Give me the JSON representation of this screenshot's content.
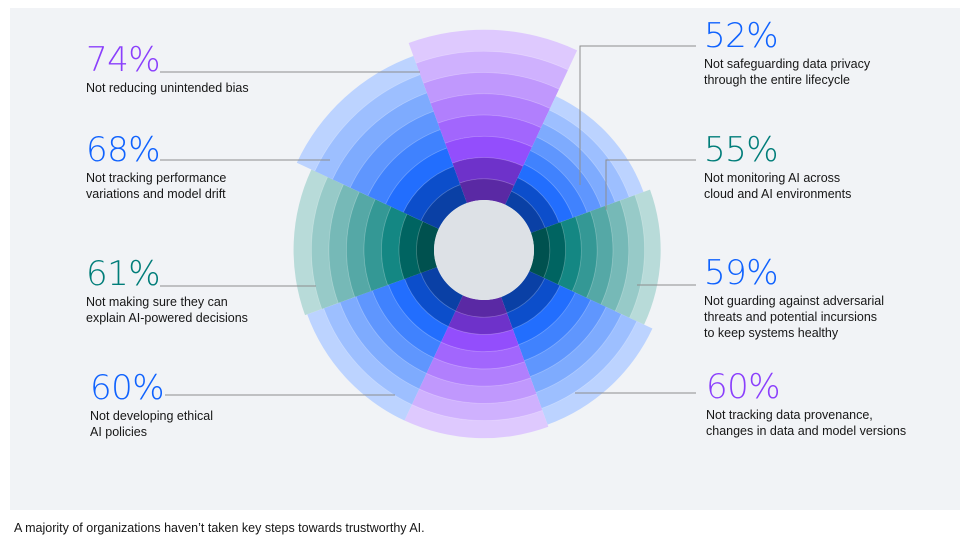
{
  "chart_data": {
    "type": "polar-bar",
    "title": "",
    "caption": "A majority of organizations haven’t taken key steps towards trustworthy AI.",
    "series": [
      {
        "label": "74%",
        "value": 74,
        "description": "Not reducing unintended bias",
        "color": "#8a3ffc"
      },
      {
        "label": "52%",
        "value": 52,
        "description": "Not safeguarding data privacy\nthrough the entire lifecycle",
        "color": "#0f62fe"
      },
      {
        "label": "55%",
        "value": 55,
        "description": "Not monitoring AI across\ncloud and AI environments",
        "color": "#007d79"
      },
      {
        "label": "59%",
        "value": 59,
        "description": "Not guarding against adversarial\nthreats and potential incursions\nto keep systems healthy",
        "color": "#0f62fe"
      },
      {
        "label": "60%",
        "value": 60,
        "description": "Not tracking data provenance,\nchanges in data and model versions",
        "color": "#8a3ffc"
      },
      {
        "label": "60%",
        "value": 60,
        "description": "Not developing ethical\nAI policies",
        "color": "#0f62fe"
      },
      {
        "label": "61%",
        "value": 61,
        "description": "Not making sure they can\nexplain AI-powered decisions",
        "color": "#007d79"
      },
      {
        "label": "68%",
        "value": 68,
        "description": "Not tracking performance\nvariations and model drift",
        "color": "#0f62fe"
      }
    ]
  }
}
